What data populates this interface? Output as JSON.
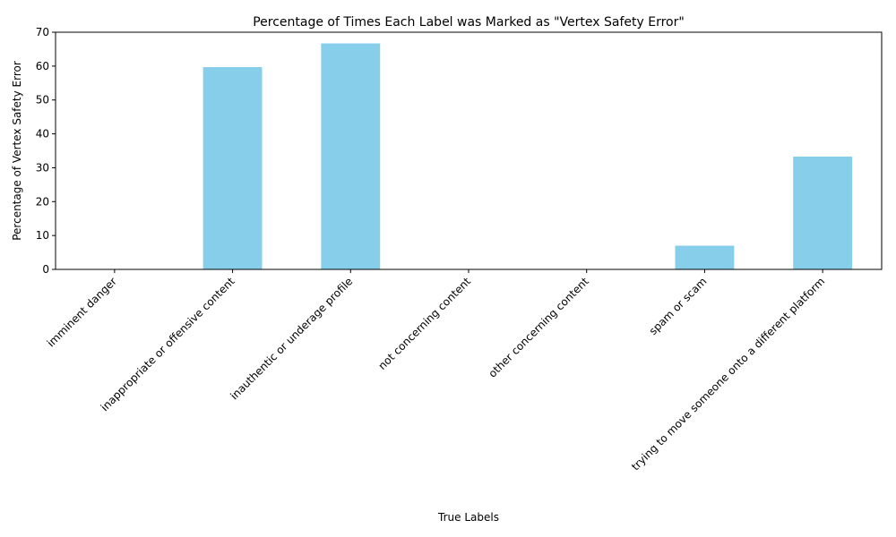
{
  "chart_data": {
    "type": "bar",
    "title": "Percentage of Times Each Label was Marked as \"Vertex Safety Error\"",
    "xlabel": "True Labels",
    "ylabel": "Percentage of Vertex Safety Error",
    "categories": [
      "imminent danger",
      "inappropriate or offensive content",
      "inauthentic or underage profile",
      "not concerning content",
      "other concerning content",
      "spam or scam",
      "trying to move someone onto a different platform"
    ],
    "values": [
      0,
      59.7,
      66.7,
      0,
      0,
      7.0,
      33.3
    ],
    "ylim": [
      0,
      70
    ],
    "yticks": [
      "0",
      "10",
      "20",
      "30",
      "40",
      "50",
      "60",
      "70"
    ],
    "bar_color": "#87ceeb",
    "grid": false,
    "legend": "none"
  }
}
